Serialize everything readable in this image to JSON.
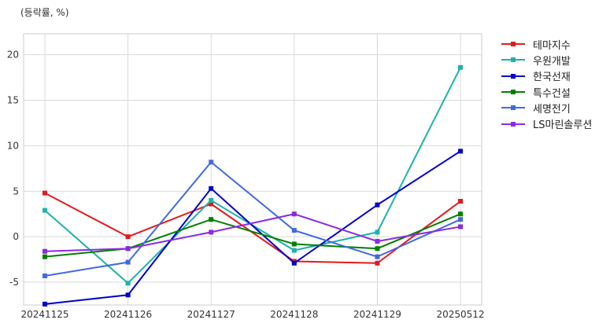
{
  "chart_data": {
    "type": "line",
    "unit_label": "(등락률, %)",
    "categories": [
      "20241125",
      "20241126",
      "20241127",
      "20241128",
      "20241129",
      "20250512"
    ],
    "ylim": [
      -7.5,
      22.3
    ],
    "yticks": [
      -5,
      0,
      5,
      10,
      15,
      20
    ],
    "grid": true,
    "legend_position": "outside-top-right",
    "series": [
      {
        "name": "테마지수",
        "color": "#e31a1c",
        "values": [
          4.8,
          0.0,
          3.6,
          -2.7,
          -2.9,
          3.9
        ]
      },
      {
        "name": "우원개발",
        "color": "#20b2aa",
        "values": [
          2.9,
          -5.1,
          4.0,
          -1.5,
          0.5,
          18.6
        ]
      },
      {
        "name": "한국선재",
        "color": "#0000cd",
        "values": [
          -7.4,
          -6.4,
          5.3,
          -2.9,
          3.5,
          9.4
        ]
      },
      {
        "name": "특수건설",
        "color": "#008000",
        "values": [
          -2.2,
          -1.3,
          1.9,
          -0.8,
          -1.3,
          2.5
        ]
      },
      {
        "name": "세명전기",
        "color": "#4169e1",
        "values": [
          -4.3,
          -2.8,
          8.2,
          0.7,
          -2.2,
          1.9
        ]
      },
      {
        "name": "LS마린솔루션",
        "color": "#8a2be2",
        "values": [
          -1.6,
          -1.3,
          0.5,
          2.5,
          -0.5,
          1.1
        ]
      }
    ]
  }
}
